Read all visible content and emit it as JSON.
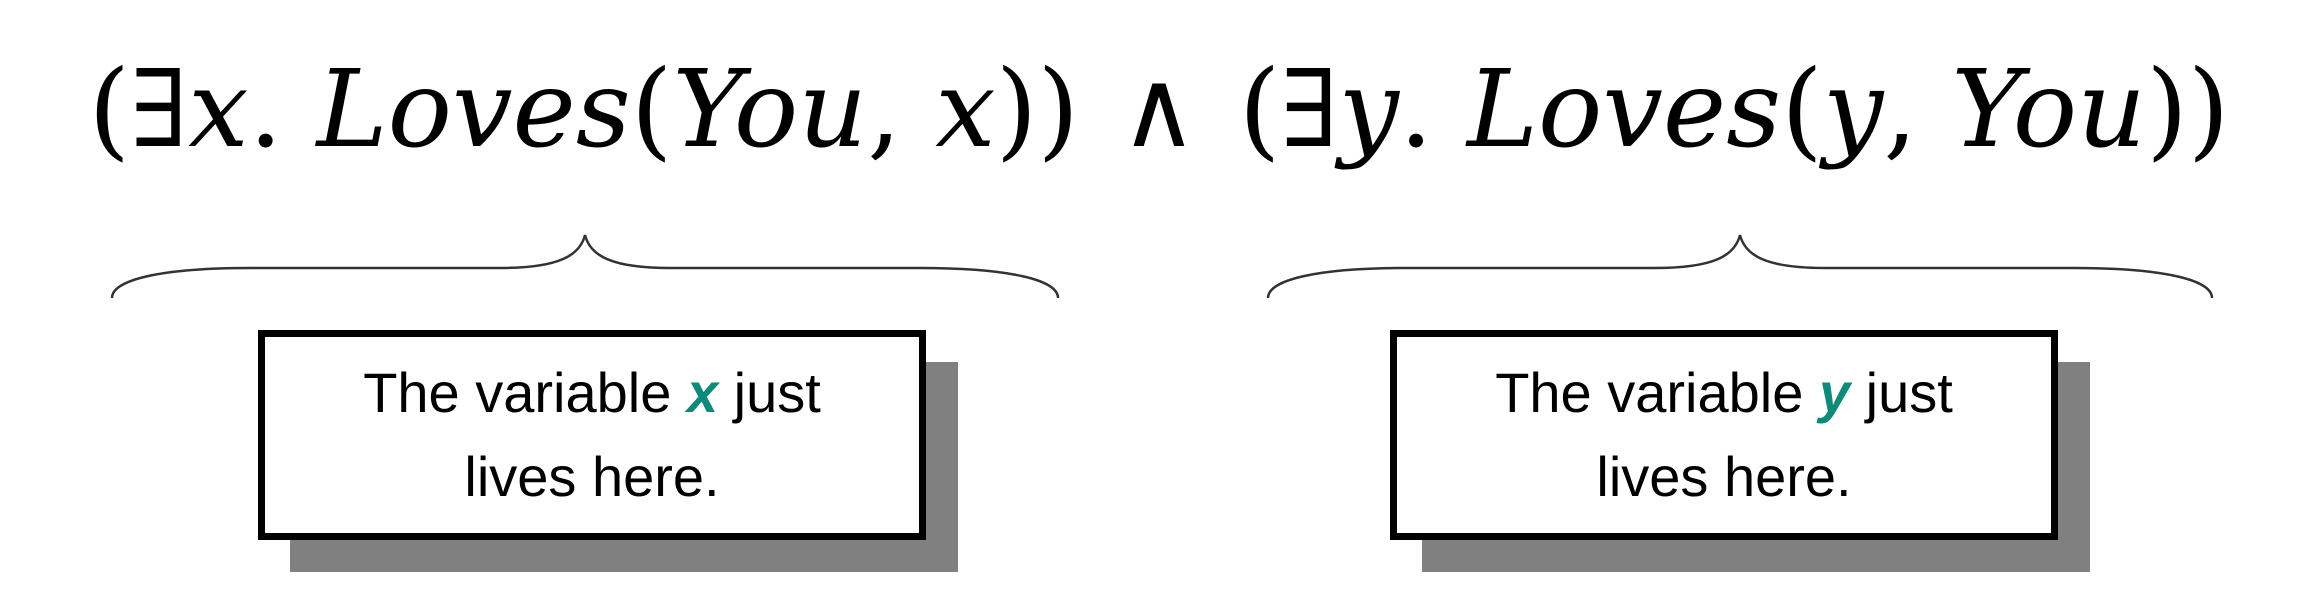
{
  "formula": {
    "open1": "(",
    "quant1": "∃",
    "var1": "x",
    "dot1": ". ",
    "pred1": "Loves",
    "paren1": "(",
    "arg1a": "You",
    "comma1": ", ",
    "arg1b": "x",
    "close1": "))",
    "conj": "∧",
    "open2": "(",
    "quant2": "∃",
    "var2": "y",
    "dot2": ". ",
    "pred2": "Loves",
    "paren2": "(",
    "arg2a": "y",
    "comma2": ", ",
    "arg2b": "You",
    "close2": "))"
  },
  "notes": {
    "left": {
      "prefix": "The variable ",
      "variable": "x",
      "suffix1": " just",
      "line2": "lives here."
    },
    "right": {
      "prefix": "The variable ",
      "variable": "y",
      "suffix1": " just",
      "line2": "lives here."
    }
  },
  "colors": {
    "variable_highlight": "#0e8a7a",
    "shadow": "#808080"
  }
}
